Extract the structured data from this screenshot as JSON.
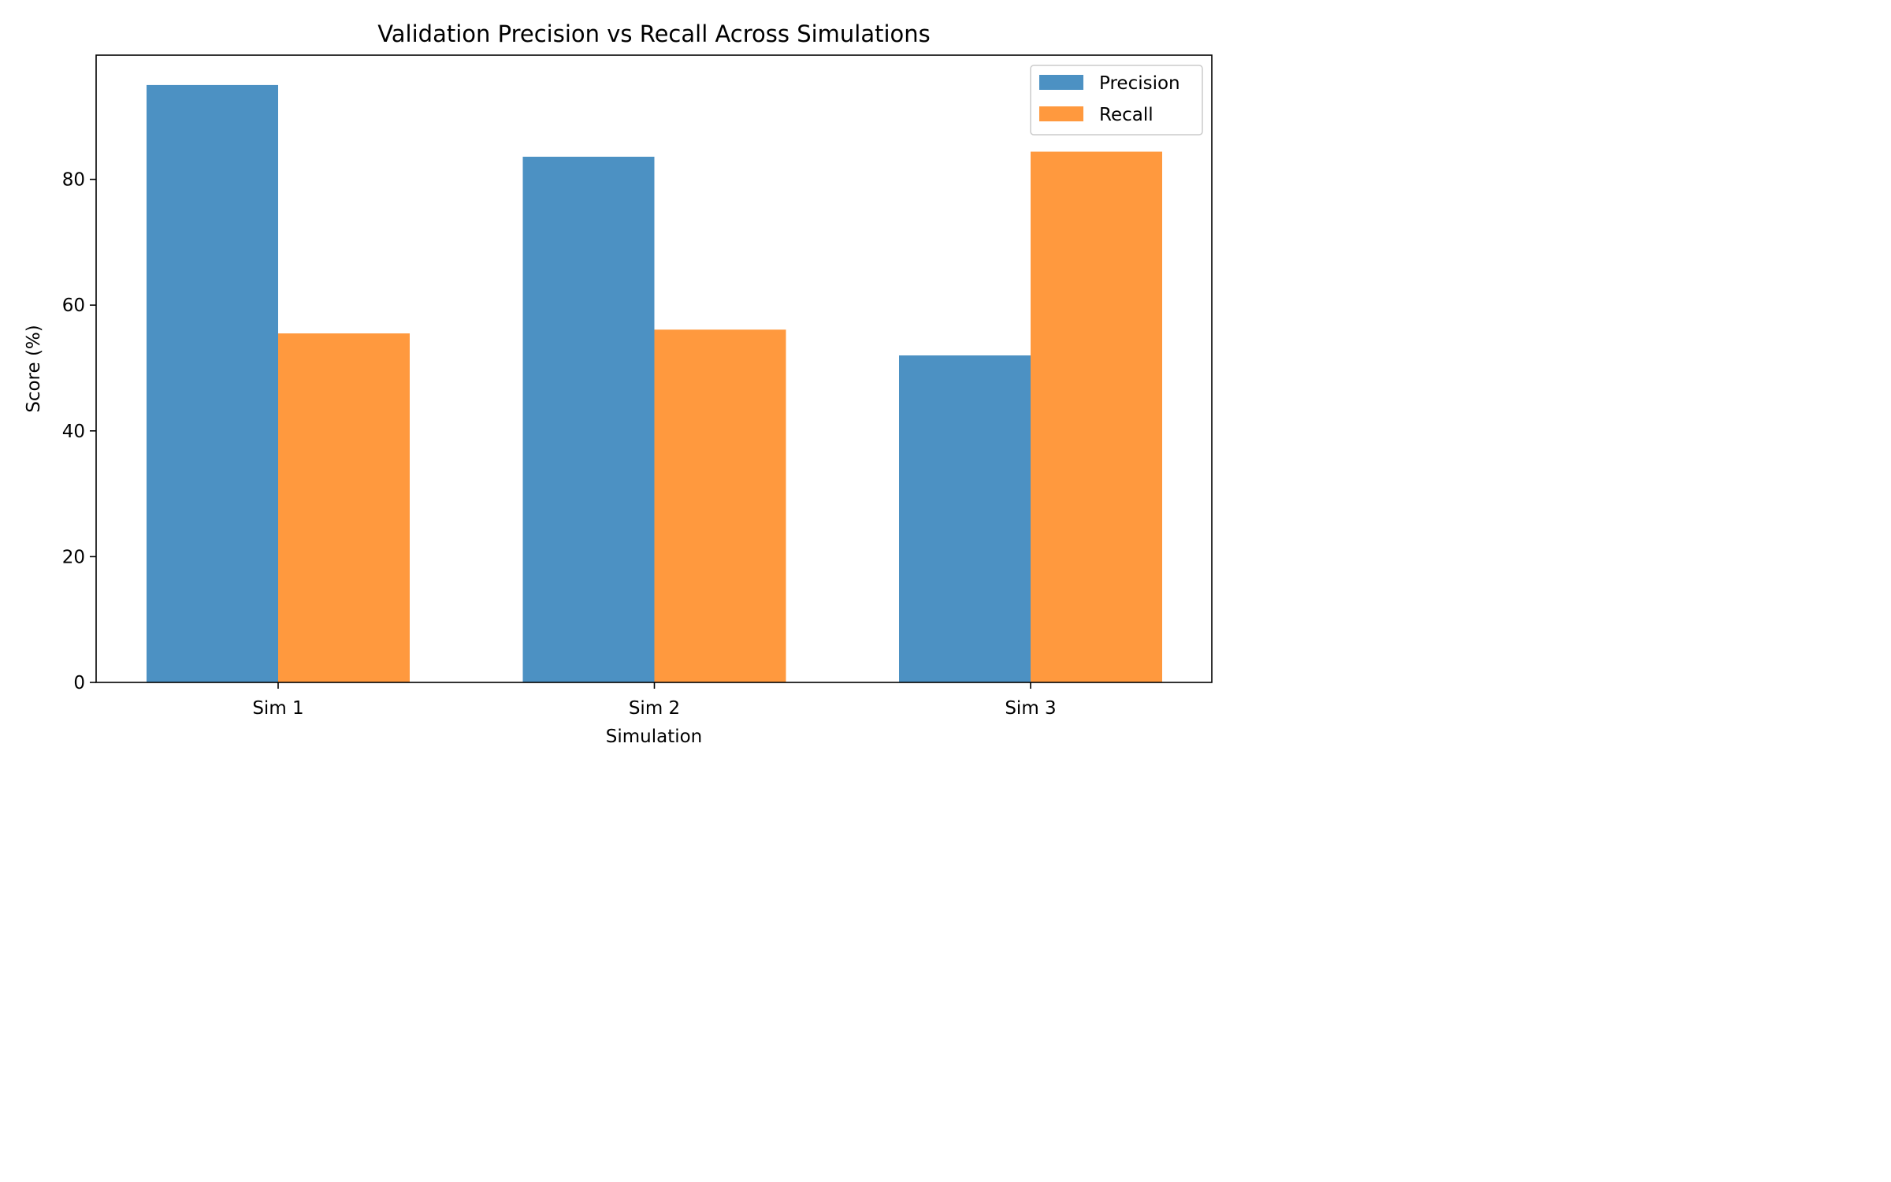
{
  "chart_data": {
    "type": "bar",
    "title": "Validation Precision vs Recall Across Simulations",
    "xlabel": "Simulation",
    "ylabel": "Score (%)",
    "categories": [
      "Sim 1",
      "Sim 2",
      "Sim 3"
    ],
    "series": [
      {
        "name": "Precision",
        "values": [
          95.0,
          83.6,
          52.0
        ],
        "color": "#4c91c3"
      },
      {
        "name": "Recall",
        "values": [
          55.5,
          56.1,
          84.4
        ],
        "color": "#ff993e"
      }
    ],
    "ylim": [
      0,
      99.75
    ],
    "yticks": [
      0,
      20,
      40,
      60,
      80
    ],
    "ytick_labels": [
      "0",
      "20",
      "40",
      "60",
      "80"
    ],
    "grid": false,
    "legend_position": "upper right"
  }
}
